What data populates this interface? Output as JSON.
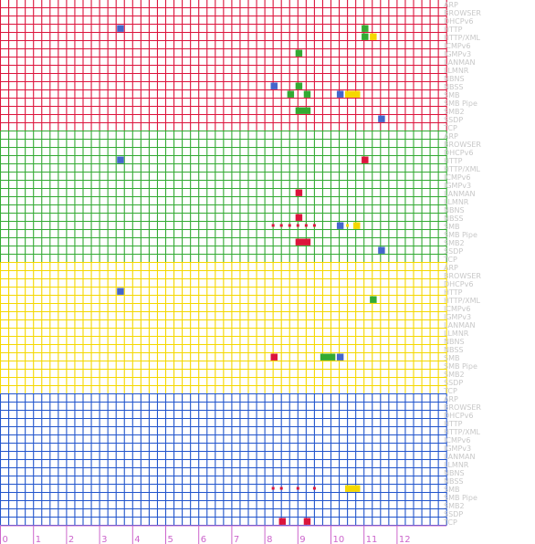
{
  "chart_data": {
    "type": "heatmap",
    "protocols": [
      "ARP",
      "BROWSER",
      "DHCPv6",
      "HTTP",
      "HTTP/XML",
      "ICMPv6",
      "IGMPv3",
      "LANMAN",
      "LLMNR",
      "NBNS",
      "NBSS",
      "SMB",
      "SMB Pipe",
      "SMB2",
      "SSDP",
      "TCP"
    ],
    "x_ticks": [
      "0",
      "1",
      "2",
      "3",
      "4",
      "5",
      "6",
      "7",
      "8",
      "9",
      "10",
      "11",
      "12"
    ],
    "x_range": [
      0,
      13.4
    ],
    "cells_per_unit": 4,
    "groups": [
      {
        "grid_color": "#dc143c",
        "cells": [
          {
            "row": "HTTP",
            "x": 3.5,
            "w": 0.25,
            "color": "#4466cc"
          },
          {
            "row": "HTTP",
            "x": 10.9,
            "w": 0.25,
            "color": "#33aa33"
          },
          {
            "row": "HTTP/XML",
            "x": 10.9,
            "w": 0.25,
            "color": "#33aa33"
          },
          {
            "row": "HTTP/XML",
            "x": 11.15,
            "w": 0.25,
            "color": "#f5d800"
          },
          {
            "row": "IGMPv3",
            "x": 8.9,
            "w": 0.25,
            "color": "#33aa33"
          },
          {
            "row": "NBSS",
            "x": 8.15,
            "w": 0.25,
            "color": "#4466cc"
          },
          {
            "row": "NBSS",
            "x": 8.9,
            "w": 0.25,
            "color": "#33aa33"
          },
          {
            "row": "SMB",
            "x": 8.65,
            "w": 0.25,
            "color": "#33aa33"
          },
          {
            "row": "SMB",
            "x": 9.15,
            "w": 0.25,
            "color": "#33aa33"
          },
          {
            "row": "SMB",
            "x": 10.15,
            "w": 0.25,
            "color": "#4466cc"
          },
          {
            "row": "SMB",
            "x": 10.4,
            "w": 0.5,
            "color": "#f5d800"
          },
          {
            "row": "SMB2",
            "x": 8.9,
            "w": 0.5,
            "color": "#33aa33"
          },
          {
            "row": "SSDP",
            "x": 11.4,
            "w": 0.25,
            "color": "#4466cc"
          }
        ],
        "dots": []
      },
      {
        "grid_color": "#33aa33",
        "cells": [
          {
            "row": "HTTP",
            "x": 3.5,
            "w": 0.25,
            "color": "#4466cc"
          },
          {
            "row": "HTTP",
            "x": 10.9,
            "w": 0.25,
            "color": "#dc143c"
          },
          {
            "row": "LANMAN",
            "x": 8.9,
            "w": 0.25,
            "color": "#dc143c"
          },
          {
            "row": "NBSS",
            "x": 8.9,
            "w": 0.25,
            "color": "#dc143c"
          },
          {
            "row": "SMB",
            "x": 10.15,
            "w": 0.25,
            "color": "#4466cc"
          },
          {
            "row": "SMB",
            "x": 10.65,
            "w": 0.25,
            "color": "#f5d800"
          },
          {
            "row": "SMB2",
            "x": 8.9,
            "w": 0.5,
            "color": "#dc143c"
          },
          {
            "row": "SSDP",
            "x": 11.4,
            "w": 0.25,
            "color": "#4466cc"
          }
        ],
        "dots": [
          {
            "row": "SMB",
            "xs": [
              8.25,
              8.5,
              8.75,
              9.0,
              9.25,
              9.5
            ],
            "color": "#dc143c"
          },
          {
            "row": "SMB",
            "xs": [
              10.5
            ],
            "color": "#f5d800"
          }
        ]
      },
      {
        "grid_color": "#f5d800",
        "cells": [
          {
            "row": "HTTP",
            "x": 3.5,
            "w": 0.25,
            "color": "#4466cc"
          },
          {
            "row": "HTTP/XML",
            "x": 11.15,
            "w": 0.25,
            "color": "#33aa33"
          },
          {
            "row": "SMB",
            "x": 8.15,
            "w": 0.25,
            "color": "#dc143c"
          },
          {
            "row": "SMB",
            "x": 9.65,
            "w": 0.5,
            "color": "#33aa33"
          },
          {
            "row": "SMB",
            "x": 10.15,
            "w": 0.25,
            "color": "#4466cc"
          }
        ],
        "dots": []
      },
      {
        "grid_color": "#2255cc",
        "cells": [
          {
            "row": "SMB",
            "x": 10.4,
            "w": 0.5,
            "color": "#f5d800"
          },
          {
            "row": "TCP",
            "x": 8.4,
            "w": 0.25,
            "color": "#dc143c"
          },
          {
            "row": "TCP",
            "x": 9.15,
            "w": 0.25,
            "color": "#dc143c"
          }
        ],
        "dots": [
          {
            "row": "SMB",
            "xs": [
              8.25,
              8.5,
              9.0,
              9.5
            ],
            "color": "#dc143c"
          }
        ]
      }
    ]
  }
}
